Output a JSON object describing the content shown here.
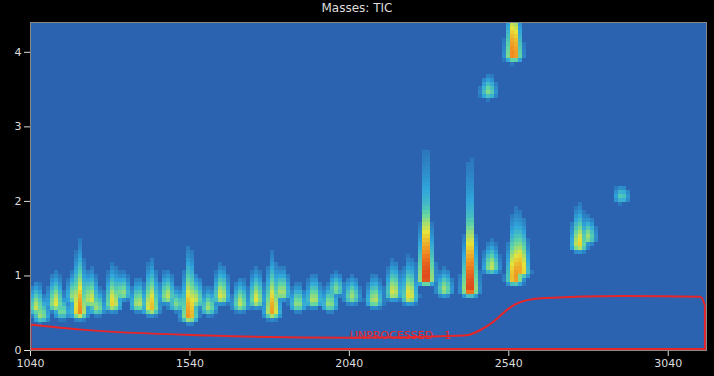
{
  "chart_data": {
    "type": "heatmap",
    "title": "Masses: TIC",
    "xlim": [
      1040,
      3160
    ],
    "ylim": [
      0,
      4.4
    ],
    "xticks": [
      1040,
      1540,
      2040,
      2540,
      3040
    ],
    "yticks": [
      0,
      1,
      2,
      3,
      4
    ],
    "intensity_range": [
      0,
      100
    ],
    "colors": [
      "#2b63b0",
      "#2fa6dc",
      "#62d6a4",
      "#e6e43a",
      "#f08a20",
      "#d41f1c"
    ],
    "peaks": {
      "x": [
        1060,
        1075,
        1120,
        1140,
        1180,
        1195,
        1230,
        1250,
        1300,
        1330,
        1380,
        1420,
        1470,
        1500,
        1540,
        1560,
        1600,
        1640,
        1700,
        1750,
        1800,
        1830,
        1880,
        1930,
        1980,
        2000,
        2050,
        2120,
        2180,
        2230,
        2282,
        2340,
        2420,
        2487,
        2560,
        2580,
        2557,
        2478,
        2762,
        2790,
        2895
      ],
      "y": [
        0.55,
        0.45,
        0.6,
        0.5,
        0.7,
        0.5,
        0.65,
        0.55,
        0.6,
        0.75,
        0.6,
        0.55,
        0.7,
        0.6,
        0.45,
        0.65,
        0.55,
        0.7,
        0.6,
        0.65,
        0.5,
        0.75,
        0.6,
        0.65,
        0.6,
        0.8,
        0.7,
        0.65,
        0.75,
        0.7,
        0.95,
        0.8,
        0.8,
        1.1,
        0.95,
        1.05,
        3.95,
        3.45,
        1.4,
        1.5,
        2.05
      ],
      "intensity": [
        55,
        50,
        60,
        45,
        55,
        80,
        60,
        50,
        65,
        50,
        55,
        70,
        55,
        45,
        80,
        55,
        50,
        60,
        55,
        60,
        75,
        55,
        50,
        55,
        50,
        45,
        50,
        55,
        60,
        65,
        100,
        50,
        100,
        55,
        80,
        75,
        85,
        45,
        65,
        50,
        35
      ]
    },
    "region": {
      "label": "UNPROCESSED - 1",
      "color": "#e8262a",
      "label_x": 2200,
      "label_y": 0.2,
      "x": [
        1040,
        1200,
        1600,
        2040,
        2400,
        2480,
        2560,
        2640,
        2900,
        3140,
        3155,
        3155,
        1040,
        1040
      ],
      "y": [
        0.35,
        0.28,
        0.2,
        0.17,
        0.2,
        0.35,
        0.62,
        0.7,
        0.73,
        0.72,
        0.6,
        0.02,
        0.02,
        0.35
      ]
    }
  }
}
